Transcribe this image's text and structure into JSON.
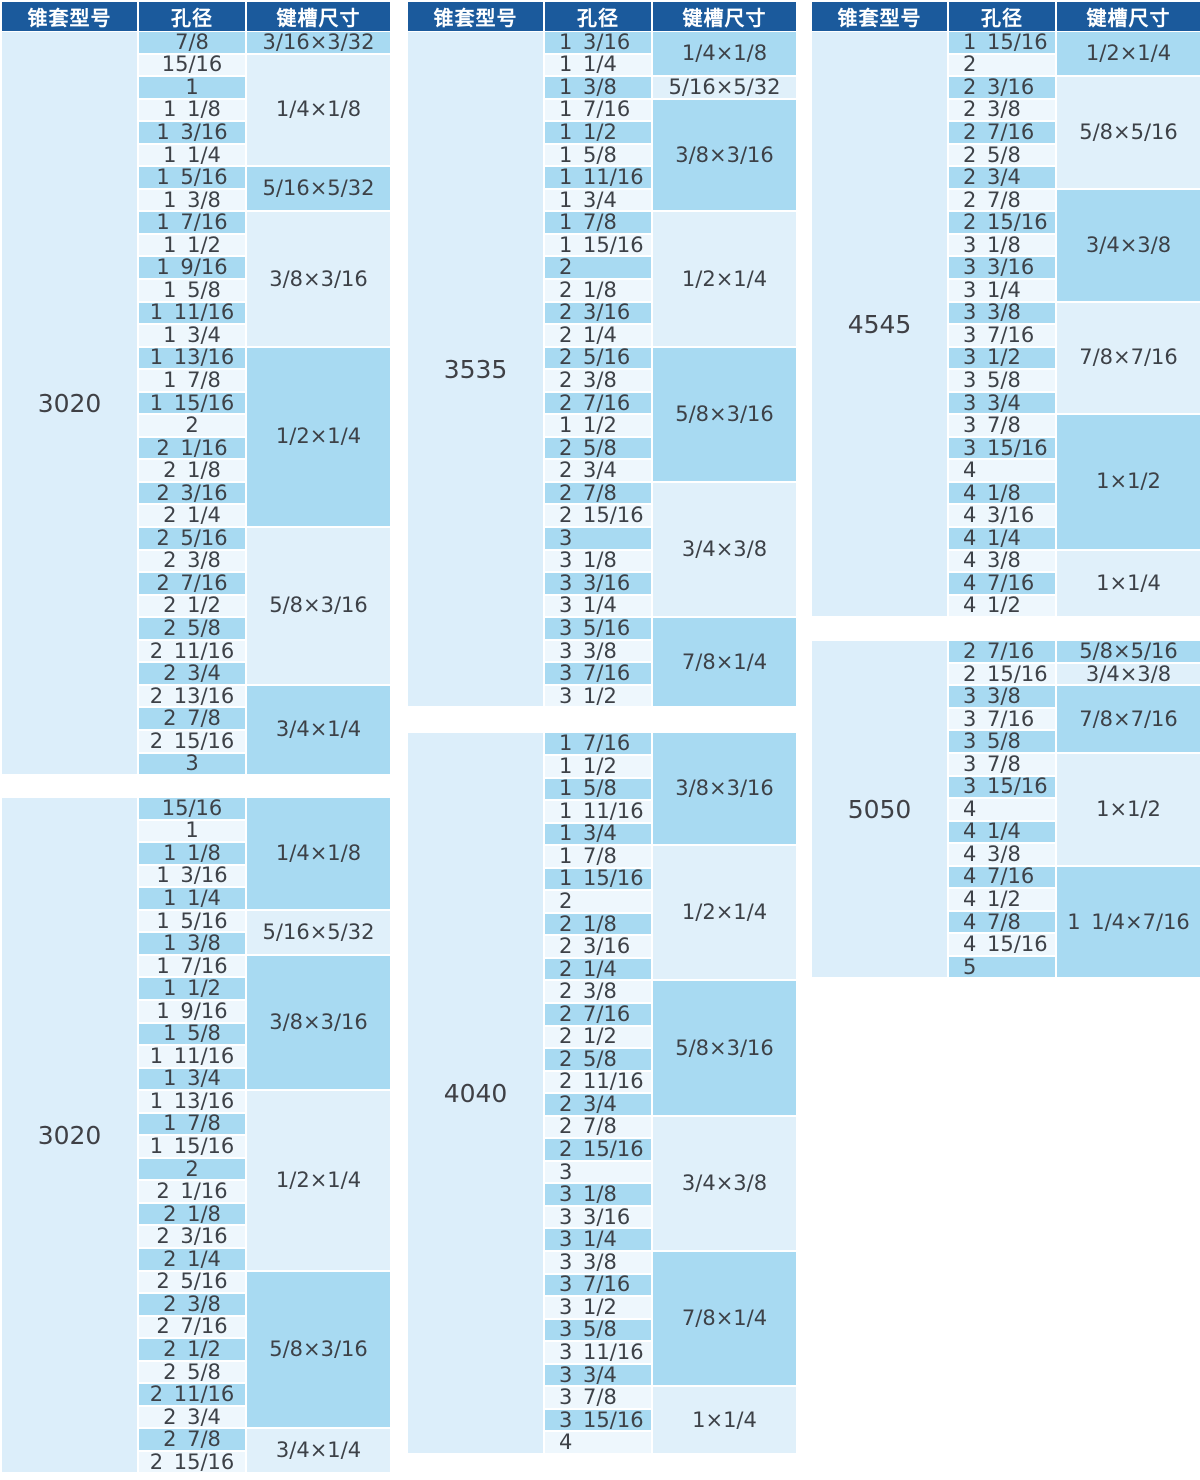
{
  "header_labels": {
    "model": "锥套型号",
    "bore": "孔径",
    "keyway": "键槽尺寸"
  },
  "colors": {
    "header_bg": "#1b5a9c",
    "header_text": "#ffffff",
    "cell_blue": "#a8daf2",
    "row_light": "#eef7fd",
    "key_light": "#e0f0fa",
    "model_col_bg": "#dceefa",
    "body_text": "#3d4147"
  },
  "columns": [
    {
      "tables": [
        {
          "model": "3020",
          "has_header": true,
          "groups": [
            {
              "keyway": "3/16×3/32",
              "bores": [
                "7/8"
              ]
            },
            {
              "keyway": "1/4×1/8",
              "bores": [
                "15/16",
                "1",
                "1 1/8",
                "1 3/16",
                "1 1/4"
              ]
            },
            {
              "keyway": "5/16×5/32",
              "bores": [
                "1 5/16",
                "1 3/8"
              ]
            },
            {
              "keyway": "3/8×3/16",
              "bores": [
                "1 7/16",
                "1 1/2",
                "1 9/16",
                "1 5/8",
                "1 11/16",
                "1 3/4"
              ]
            },
            {
              "keyway": "1/2×1/4",
              "bores": [
                "1 13/16",
                "1 7/8",
                "1 15/16",
                "2",
                "2 1/16",
                "2 1/8",
                "2 3/16",
                "2 1/4"
              ]
            },
            {
              "keyway": "5/8×3/16",
              "bores": [
                "2 5/16",
                "2 3/8",
                "2 7/16",
                "2 1/2",
                "2 5/8",
                "2 11/16",
                "2 3/4"
              ]
            },
            {
              "keyway": "3/4×1/4",
              "bores": [
                "2 13/16",
                "2 7/8",
                "2 15/16",
                "3"
              ]
            }
          ]
        },
        {
          "model": "3020",
          "has_header": false,
          "groups": [
            {
              "keyway": "1/4×1/8",
              "bores": [
                "15/16",
                "1",
                "1 1/8",
                "1 3/16",
                "1 1/4"
              ]
            },
            {
              "keyway": "5/16×5/32",
              "bores": [
                "1 5/16",
                "1 3/8"
              ]
            },
            {
              "keyway": "3/8×3/16",
              "bores": [
                "1 7/16",
                "1 1/2",
                "1 9/16",
                "1 5/8",
                "1 11/16",
                "1 3/4"
              ]
            },
            {
              "keyway": "1/2×1/4",
              "bores": [
                "1 13/16",
                "1 7/8",
                "1 15/16",
                "2",
                "2 1/16",
                "2 1/8",
                "2 3/16",
                "2 1/4"
              ]
            },
            {
              "keyway": "5/8×3/16",
              "bores": [
                "2 5/16",
                "2 3/8",
                "2 7/16",
                "2 1/2",
                "2 5/8",
                "2 11/16",
                "2 3/4"
              ]
            },
            {
              "keyway": "3/4×1/4",
              "bores": [
                "2 7/8",
                "2 15/16"
              ]
            }
          ]
        }
      ]
    },
    {
      "tables": [
        {
          "model": "3535",
          "has_header": true,
          "groups": [
            {
              "keyway": "1/4×1/8",
              "bores": [
                "1 3/16",
                "1 1/4"
              ]
            },
            {
              "keyway": "5/16×5/32",
              "bores": [
                "1 3/8"
              ]
            },
            {
              "keyway": "3/8×3/16",
              "bores": [
                "1 7/16",
                "1 1/2",
                "1 5/8",
                "1 11/16",
                "1 3/4"
              ]
            },
            {
              "keyway": "1/2×1/4",
              "bores": [
                "1 7/8",
                "1 15/16",
                "2",
                "2 1/8",
                "2 3/16",
                "2 1/4"
              ]
            },
            {
              "keyway": "5/8×3/16",
              "bores": [
                "2 5/16",
                "2 3/8",
                "2 7/16",
                "1 1/2",
                "2 5/8",
                "2 3/4"
              ]
            },
            {
              "keyway": "3/4×3/8",
              "bores": [
                "2 7/8",
                "2 15/16",
                "3",
                "3 1/8",
                "3 3/16",
                "3 1/4"
              ]
            },
            {
              "keyway": "7/8×1/4",
              "bores": [
                "3 5/16",
                "3 3/8",
                "3 7/16",
                "3 1/2"
              ]
            }
          ]
        },
        {
          "model": "4040",
          "has_header": false,
          "groups": [
            {
              "keyway": "3/8×3/16",
              "bores": [
                "1 7/16",
                "1 1/2",
                "1 5/8",
                "1 11/16",
                "1 3/4"
              ]
            },
            {
              "keyway": "1/2×1/4",
              "bores": [
                "1 7/8",
                "1 15/16",
                "2",
                "2 1/8",
                "2 3/16",
                "2 1/4"
              ]
            },
            {
              "keyway": "5/8×3/16",
              "bores": [
                "2 3/8",
                "2 7/16",
                "2 1/2",
                "2 5/8",
                "2 11/16",
                "2 3/4"
              ]
            },
            {
              "keyway": "3/4×3/8",
              "bores": [
                "2 7/8",
                "2 15/16",
                "3",
                "3 1/8",
                "3 3/16",
                "3 1/4"
              ]
            },
            {
              "keyway": "7/8×1/4",
              "bores": [
                "3 3/8",
                "3 7/16",
                "3 1/2",
                "3 5/8",
                "3 11/16",
                "3 3/4"
              ]
            },
            {
              "keyway": "1×1/4",
              "bores": [
                "3 7/8",
                "3 15/16",
                "4"
              ]
            }
          ]
        }
      ]
    },
    {
      "tables": [
        {
          "model": "4545",
          "has_header": true,
          "groups": [
            {
              "keyway": "1/2×1/4",
              "bores": [
                "1 15/16",
                "2"
              ]
            },
            {
              "keyway": "5/8×5/16",
              "bores": [
                "2 3/16",
                "2 3/8",
                "2 7/16",
                "2 5/8",
                "2 3/4"
              ]
            },
            {
              "keyway": "3/4×3/8",
              "bores": [
                "2 7/8",
                "2 15/16",
                "3 1/8",
                "3 3/16",
                "3 1/4"
              ]
            },
            {
              "keyway": "7/8×7/16",
              "bores": [
                "3 3/8",
                "3 7/16",
                "3 1/2",
                "3 5/8",
                "3 3/4"
              ]
            },
            {
              "keyway": "1×1/2",
              "bores": [
                "3 7/8",
                "3 15/16",
                "4",
                "4 1/8",
                "4 3/16",
                "4 1/4"
              ]
            },
            {
              "keyway": "1×1/4",
              "bores": [
                "4 3/8",
                "4 7/16",
                "4 1/2"
              ]
            }
          ]
        },
        {
          "model": "5050",
          "has_header": false,
          "groups": [
            {
              "keyway": "5/8×5/16",
              "bores": [
                "2 7/16"
              ]
            },
            {
              "keyway": "3/4×3/8",
              "bores": [
                "2 15/16"
              ]
            },
            {
              "keyway": "7/8×7/16",
              "bores": [
                "3 3/8",
                "3 7/16",
                "3 5/8"
              ]
            },
            {
              "keyway": "1×1/2",
              "bores": [
                "3 7/8",
                "3 15/16",
                "4",
                "4 1/4",
                "4 3/8"
              ]
            },
            {
              "keyway": "1 1/4×7/16",
              "bores": [
                "4 7/16",
                "4 1/2",
                "4 7/8",
                "4 15/16",
                "5"
              ]
            }
          ]
        }
      ]
    }
  ]
}
